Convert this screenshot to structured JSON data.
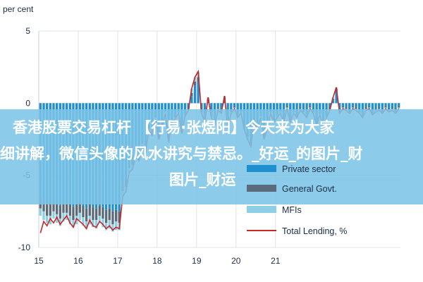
{
  "chart_data": {
    "type": "bar",
    "ylabel": "per cent",
    "ylim": [
      -10,
      5
    ],
    "yticks": [
      5,
      0,
      -5,
      -10
    ],
    "xticks": [
      "15",
      "16",
      "17",
      "18",
      "19",
      "20",
      "21"
    ],
    "grid": true,
    "legend_position": "bottom-right",
    "colors": {
      "private": "#1f8fd0",
      "general": "#5a6b7c",
      "mfi": "#8ecfe6",
      "line": "#c62828"
    },
    "series": [
      {
        "name": "Private sector",
        "kind": "bar",
        "values": [
          -6.5,
          -6.8,
          -6.9,
          -7.0,
          -6.8,
          -6.9,
          -7.1,
          -6.8,
          -6.9,
          -7.0,
          -7.2,
          -7.0,
          -6.9,
          -7.1,
          -7.3,
          -7.0,
          -7.2,
          -7.3,
          -7.1,
          -7.2,
          -7.4,
          -7.3,
          -7.5,
          -7.4,
          -7.5,
          -5.5,
          -5.2,
          -4.0,
          -3.8,
          -3.0,
          -3.3,
          -2.5,
          -2.8,
          -1.5,
          -1.8,
          -0.8,
          -2.0,
          -1.5,
          -0.5,
          -2.2,
          -1.0,
          -0.8,
          -0.5,
          -1.8,
          -0.7,
          -0.3,
          0.5,
          1.2,
          1.5,
          -0.5,
          -1.0,
          0.2,
          -0.8,
          -1.2,
          -0.3,
          -0.5,
          0.3,
          -1.5,
          -0.5,
          -0.2,
          -0.8,
          -0.5,
          -1.5,
          -2.0,
          -2.5,
          -1.0,
          -1.5,
          -0.8,
          -2.0,
          -1.5,
          -0.5,
          -1.0,
          -0.8,
          -0.5,
          -1.0,
          -0.2,
          -1.0,
          -0.5,
          -0.8,
          -0.3,
          -0.5,
          -0.8,
          -0.2,
          -0.5,
          -1.2,
          -0.6,
          -1.5,
          -0.8,
          -0.3,
          0.2,
          0.8,
          -0.5,
          -0.2,
          -0.3,
          -0.5,
          -0.2,
          -0.3,
          -0.5,
          -0.8,
          -0.3,
          -0.2,
          -0.6,
          -0.4,
          -0.3,
          -0.5,
          -0.2,
          -0.4,
          -0.3,
          -0.5,
          -0.2
        ]
      },
      {
        "name": "General Govt.",
        "kind": "bar",
        "values": [
          -0.8,
          -0.7,
          -0.9,
          -0.8,
          -0.7,
          -0.8,
          -0.9,
          -0.8,
          -0.7,
          -0.8,
          -0.9,
          -0.8,
          -0.7,
          -0.8,
          -0.9,
          -0.8,
          -0.9,
          -0.8,
          -0.7,
          -0.8,
          -0.9,
          -0.8,
          -0.9,
          -0.8,
          -0.8,
          -0.6,
          -0.6,
          -0.5,
          -0.5,
          -0.4,
          -0.4,
          -0.3,
          -0.4,
          -0.3,
          -0.3,
          -0.2,
          -0.3,
          -0.2,
          -0.1,
          -0.3,
          -0.2,
          -0.2,
          -0.1,
          -0.2,
          -0.1,
          -0.1,
          0.2,
          0.3,
          0.3,
          -0.1,
          -0.2,
          0.1,
          -0.1,
          -0.2,
          -0.1,
          -0.1,
          0.1,
          -0.2,
          -0.1,
          -0.1,
          -0.1,
          -0.1,
          -0.2,
          -0.3,
          -0.3,
          -0.2,
          -0.2,
          -0.1,
          -0.3,
          -0.2,
          -0.1,
          -0.2,
          -0.1,
          -0.1,
          -0.2,
          -0.1,
          -0.2,
          -0.1,
          -0.1,
          -0.1,
          -0.1,
          -0.1,
          -0.1,
          -0.1,
          -0.2,
          -0.1,
          -0.2,
          -0.1,
          -0.1,
          0.1,
          0.2,
          -0.1,
          -0.1,
          -0.1,
          -0.1,
          -0.1,
          -0.1,
          -0.1,
          -0.1,
          -0.1,
          -0.1,
          -0.1,
          -0.1,
          -0.1,
          -0.1,
          -0.1,
          -0.1,
          -0.1,
          -0.1,
          -0.1
        ]
      },
      {
        "name": "MFIs",
        "kind": "bar",
        "values": [
          -0.5,
          -0.6,
          -0.5,
          -0.6,
          -0.5,
          -0.6,
          -0.5,
          -0.6,
          -0.5,
          -0.6,
          -0.5,
          -0.6,
          -0.5,
          -0.6,
          -0.5,
          -0.6,
          -0.5,
          -0.6,
          -0.5,
          -0.6,
          -0.5,
          -0.6,
          -0.5,
          -0.6,
          -0.5,
          -0.4,
          -0.4,
          -0.3,
          -0.3,
          -0.3,
          -0.3,
          -0.2,
          -0.2,
          -0.2,
          -0.2,
          -0.1,
          -0.2,
          -0.1,
          -0.1,
          -0.2,
          -0.1,
          -0.1,
          -0.1,
          -0.1,
          -0.1,
          -0.1,
          0.3,
          0.3,
          0.4,
          -0.1,
          -0.1,
          0.1,
          -0.1,
          -0.1,
          -0.1,
          -0.1,
          0.1,
          -0.1,
          -0.1,
          -0.1,
          -0.1,
          -0.1,
          -0.1,
          -0.2,
          -0.2,
          -0.1,
          -0.1,
          -0.1,
          -0.2,
          -0.1,
          -0.1,
          -0.1,
          -0.1,
          -0.1,
          -0.1,
          -0.1,
          -0.1,
          -0.1,
          -0.1,
          -0.1,
          -0.1,
          -0.1,
          -0.1,
          -0.1,
          -0.1,
          -0.1,
          -0.1,
          -0.1,
          -0.1,
          0.1,
          0.1,
          -0.1,
          -0.1,
          -0.1,
          -0.1,
          -0.1,
          -0.1,
          -0.1,
          -0.1,
          -0.1,
          -0.1,
          -0.1,
          -0.1,
          -0.1,
          -0.1,
          -0.1,
          -0.1,
          -0.1,
          -0.1,
          -0.1
        ]
      },
      {
        "name": "Total Lending, %",
        "kind": "line",
        "values": [
          -9.0,
          -8.2,
          -8.5,
          -8.0,
          -8.3,
          -7.9,
          -8.4,
          -8.1,
          -7.8,
          -8.3,
          -8.6,
          -8.0,
          -8.2,
          -8.4,
          -8.7,
          -8.1,
          -8.5,
          -8.6,
          -8.2,
          -8.4,
          -8.7,
          -8.5,
          -8.8,
          -8.6,
          -8.7,
          -6.5,
          -6.1,
          -4.8,
          -4.6,
          -3.6,
          -4.0,
          -3.0,
          -3.4,
          -1.9,
          -2.2,
          -1.1,
          -2.5,
          -1.8,
          -0.7,
          -2.7,
          -1.3,
          -1.1,
          -0.7,
          -2.1,
          -0.9,
          -0.5,
          1.0,
          1.8,
          2.2,
          -0.7,
          -1.3,
          0.4,
          -1.0,
          -1.5,
          -0.5,
          -0.7,
          0.5,
          -1.8,
          -0.7,
          -0.4,
          -1.0,
          -0.7,
          -1.8,
          -2.5,
          -3.0,
          -1.3,
          -1.8,
          -1.0,
          -2.5,
          -1.8,
          -0.7,
          -1.3,
          -1.0,
          -0.7,
          -1.3,
          -0.4,
          -1.3,
          -0.7,
          -1.0,
          -0.5,
          -0.7,
          -1.0,
          -0.4,
          -0.7,
          -1.5,
          -0.8,
          -1.8,
          -1.0,
          -0.5,
          0.4,
          1.1,
          -0.7,
          -0.4,
          -0.5,
          -0.7,
          -0.4,
          -0.5,
          -0.7,
          -1.0,
          -0.5,
          -0.4,
          -0.8,
          -0.6,
          -0.5,
          -0.7,
          -0.4,
          -0.6,
          -0.5,
          -0.7,
          -0.4
        ]
      }
    ]
  },
  "overlay": {
    "banner_line1": "香港股票交易杠杆 【行易·张煜阳】今天来为大家",
    "banner_line2": "细讲解，微信头像的风水讲究与禁忌。_好运_的图片_财",
    "banner_line3": "图片_财运"
  }
}
